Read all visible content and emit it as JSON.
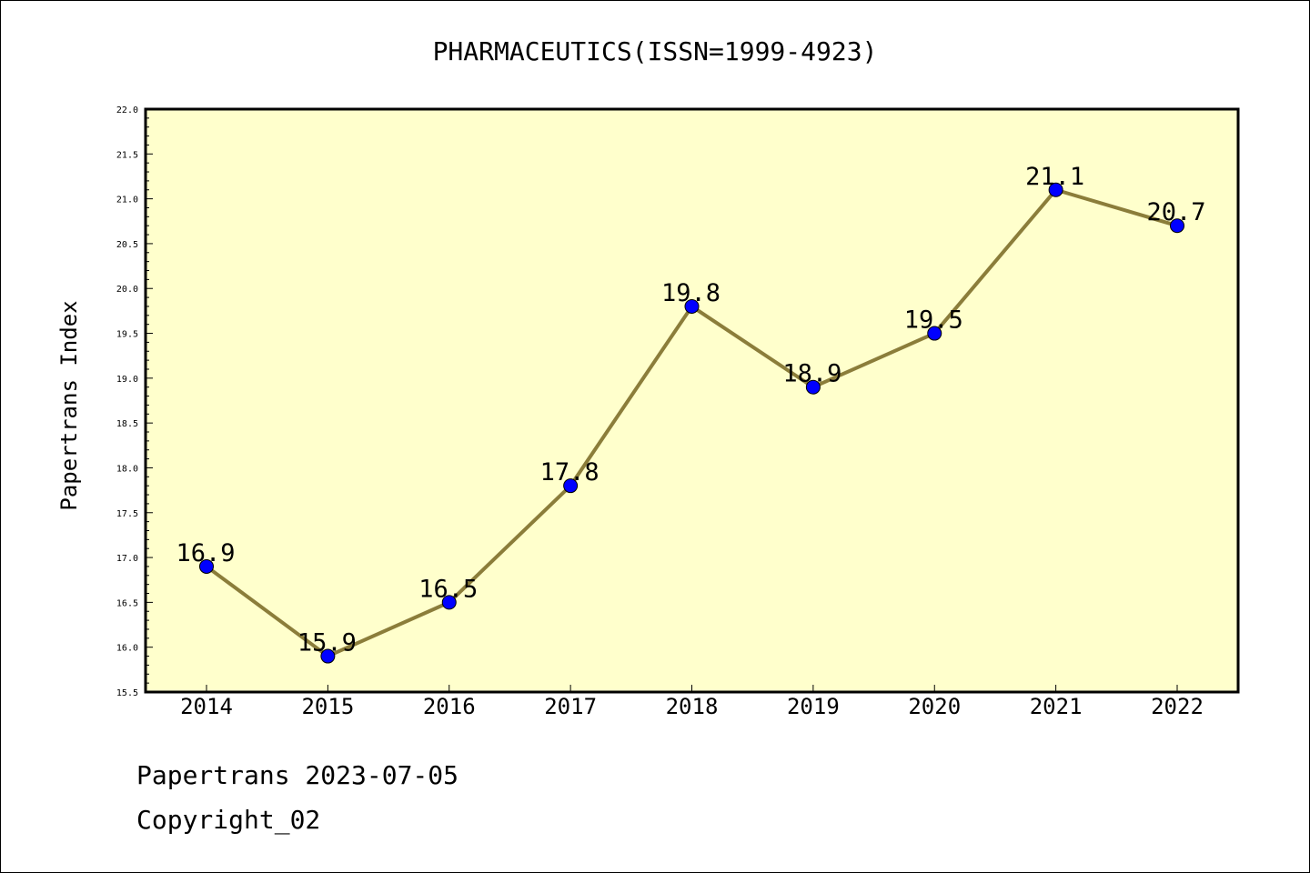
{
  "chart_data": {
    "type": "line",
    "title": "PHARMACEUTICS(ISSN=1999-4923)",
    "xlabel": "",
    "ylabel": "Papertrans Index",
    "categories": [
      "2014",
      "2015",
      "2016",
      "2017",
      "2018",
      "2019",
      "2020",
      "2021",
      "2022"
    ],
    "values": [
      16.9,
      15.9,
      16.5,
      17.8,
      19.8,
      18.9,
      19.5,
      21.1,
      20.7
    ],
    "data_labels": [
      "16.9",
      "15.9",
      "16.5",
      "17.8",
      "19.8",
      "18.9",
      "19.5",
      "21.1",
      "20.7"
    ],
    "ylim": [
      15.5,
      22.0
    ],
    "yticks": [
      "15.5",
      "16.0",
      "16.5",
      "17.0",
      "17.5",
      "18.0",
      "18.5",
      "19.0",
      "19.5",
      "20.0",
      "20.5",
      "21.0",
      "21.5",
      "22.0"
    ],
    "grid": false,
    "legend": "none",
    "colors": {
      "plot_background": "#ffffcc",
      "line": "#8b7d3a",
      "marker": "#0000ff"
    }
  },
  "footer": {
    "date_text": "Papertrans 2023-07-05",
    "copyright_text": "Copyright_02"
  }
}
